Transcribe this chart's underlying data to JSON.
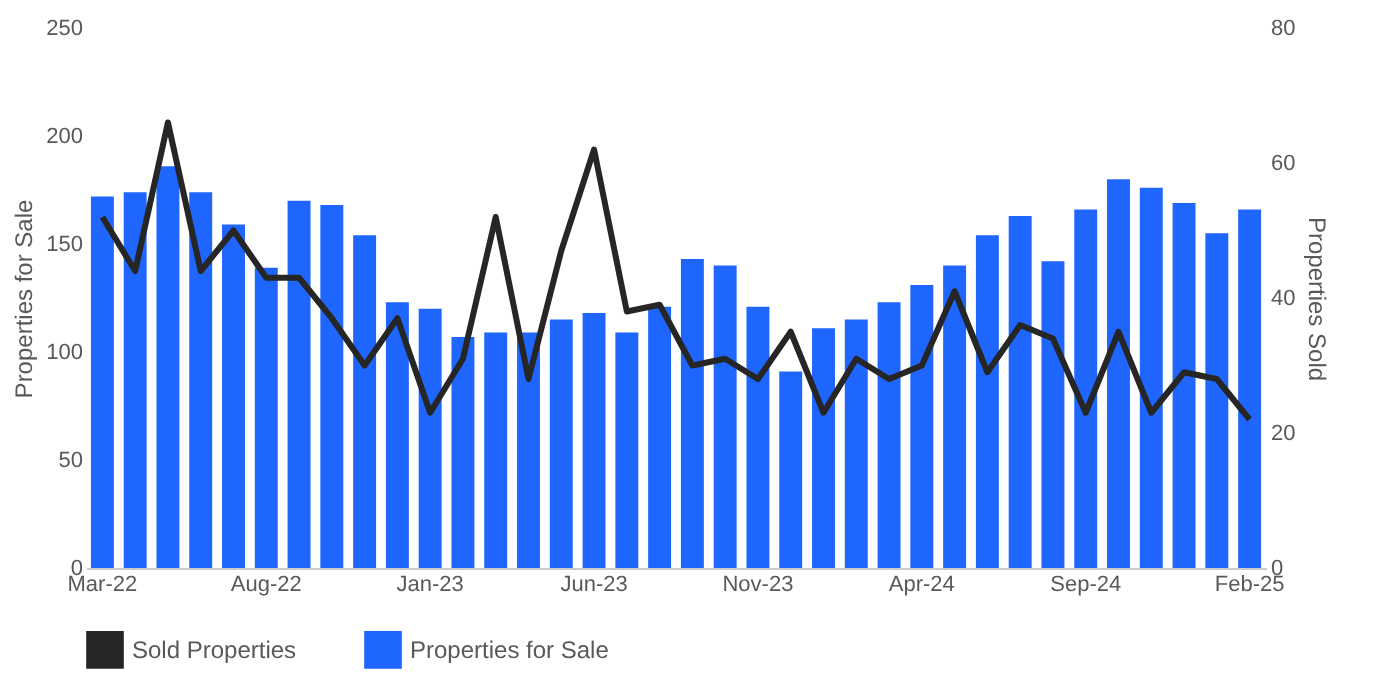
{
  "chart_data": {
    "type": "bar",
    "ylabel": "Properties for Sale",
    "y2label": "Properties Sold",
    "categories": [
      "Mar-22",
      null,
      null,
      null,
      null,
      "Aug-22",
      null,
      null,
      null,
      null,
      "Jan-23",
      null,
      null,
      null,
      null,
      "Jun-23",
      null,
      null,
      null,
      null,
      "Nov-23",
      null,
      null,
      null,
      null,
      "Apr-24",
      null,
      null,
      null,
      null,
      "Sep-24",
      null,
      null,
      null,
      null,
      "Feb-25"
    ],
    "series": [
      {
        "name": "Sold Properties",
        "type": "line",
        "axis": "y2",
        "color": "#262626",
        "values": [
          52,
          44,
          66,
          44,
          50,
          43,
          43,
          37,
          30,
          37,
          23,
          31,
          52,
          28,
          47,
          62,
          38,
          39,
          30,
          31,
          28,
          35,
          23,
          31,
          28,
          30,
          41,
          29,
          36,
          34,
          23,
          35,
          23,
          29,
          28,
          22
        ]
      },
      {
        "name": "Properties for Sale",
        "color": "#1f66ff",
        "values": [
          172,
          174,
          186,
          174,
          159,
          139,
          170,
          168,
          154,
          123,
          120,
          107,
          109,
          109,
          115,
          118,
          109,
          121,
          143,
          140,
          121,
          91,
          111,
          115,
          123,
          131,
          140,
          154,
          163,
          142,
          166,
          180,
          176,
          169,
          155,
          166
        ]
      }
    ],
    "ylim": [
      0,
      250
    ],
    "yticks": [
      0,
      50,
      100,
      150,
      200,
      250
    ],
    "y2lim": [
      0,
      80
    ],
    "y2ticks": [
      0,
      20,
      40,
      60,
      80
    ],
    "grid": false,
    "legend": "bottom"
  }
}
